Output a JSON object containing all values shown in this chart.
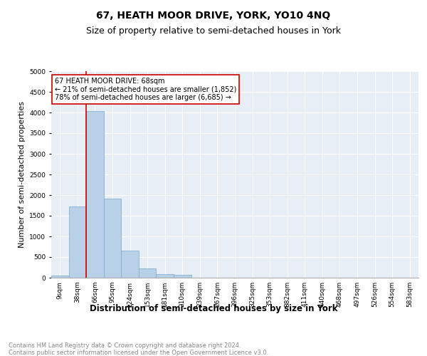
{
  "title": "67, HEATH MOOR DRIVE, YORK, YO10 4NQ",
  "subtitle": "Size of property relative to semi-detached houses in York",
  "xlabel": "Distribution of semi-detached houses by size in York",
  "ylabel": "Number of semi-detached properties",
  "footer": "Contains HM Land Registry data © Crown copyright and database right 2024.\nContains public sector information licensed under the Open Government Licence v3.0.",
  "categories": [
    "9sqm",
    "38sqm",
    "66sqm",
    "95sqm",
    "124sqm",
    "153sqm",
    "181sqm",
    "210sqm",
    "239sqm",
    "267sqm",
    "296sqm",
    "325sqm",
    "353sqm",
    "382sqm",
    "411sqm",
    "440sqm",
    "468sqm",
    "497sqm",
    "526sqm",
    "554sqm",
    "583sqm"
  ],
  "values": [
    55,
    1720,
    4030,
    1910,
    650,
    220,
    90,
    75,
    0,
    0,
    0,
    0,
    0,
    0,
    0,
    0,
    0,
    0,
    0,
    0,
    0
  ],
  "bar_color": "#b8d0e8",
  "bar_edge_color": "#7aa8cc",
  "property_line_bar_index": 2,
  "property_size": 68,
  "pct_smaller": 21,
  "count_smaller": 1852,
  "pct_larger": 78,
  "count_larger": 6685,
  "annotation_box_color": "#cc0000",
  "ylim": [
    0,
    5000
  ],
  "yticks": [
    0,
    500,
    1000,
    1500,
    2000,
    2500,
    3000,
    3500,
    4000,
    4500,
    5000
  ],
  "background_color": "#e8eef5",
  "grid_color": "#ffffff",
  "title_fontsize": 10,
  "subtitle_fontsize": 9,
  "xlabel_fontsize": 8.5,
  "ylabel_fontsize": 8,
  "tick_fontsize": 6.5,
  "ann_fontsize": 7,
  "footer_fontsize": 6,
  "footer_color": "#888888"
}
